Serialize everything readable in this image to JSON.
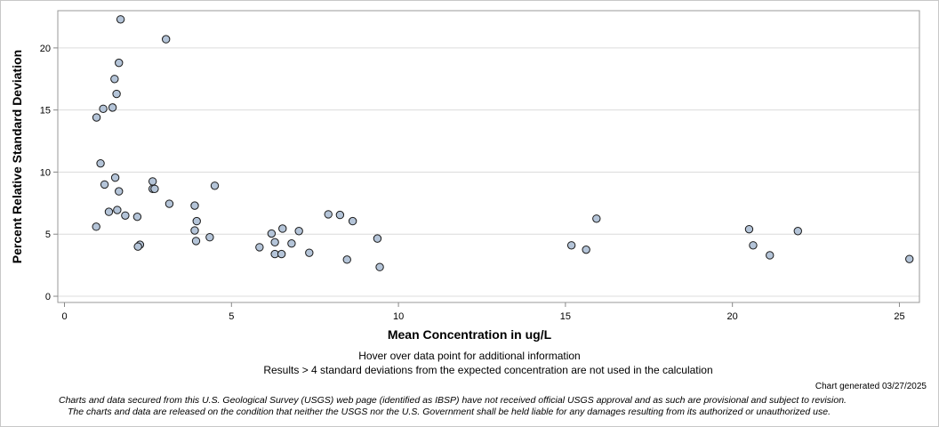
{
  "chart_data": {
    "type": "scatter",
    "title": "",
    "xlabel": "Mean Concentration in ug/L",
    "ylabel": "Percent Relative Standard Deviation",
    "xlim": [
      -0.2,
      25.6
    ],
    "ylim": [
      -0.5,
      23.0
    ],
    "xticks": [
      0,
      5,
      10,
      15,
      20,
      25
    ],
    "yticks": [
      0,
      5,
      10,
      15,
      20
    ],
    "grid": "horizontal",
    "points": [
      [
        1.68,
        22.3
      ],
      [
        3.04,
        20.7
      ],
      [
        1.63,
        18.8
      ],
      [
        1.5,
        17.5
      ],
      [
        1.56,
        16.3
      ],
      [
        0.96,
        14.4
      ],
      [
        1.16,
        15.1
      ],
      [
        1.44,
        15.2
      ],
      [
        1.08,
        10.7
      ],
      [
        1.52,
        9.55
      ],
      [
        1.2,
        9.0
      ],
      [
        1.63,
        8.45
      ],
      [
        2.64,
        9.25
      ],
      [
        2.64,
        8.65
      ],
      [
        2.7,
        8.65
      ],
      [
        4.5,
        8.9
      ],
      [
        3.14,
        7.45
      ],
      [
        3.9,
        7.3
      ],
      [
        1.33,
        6.8
      ],
      [
        1.58,
        6.95
      ],
      [
        1.82,
        6.5
      ],
      [
        2.18,
        6.4
      ],
      [
        3.96,
        6.05
      ],
      [
        0.95,
        5.6
      ],
      [
        3.9,
        5.3
      ],
      [
        4.35,
        4.75
      ],
      [
        3.94,
        4.45
      ],
      [
        2.26,
        4.15
      ],
      [
        2.2,
        4.0
      ],
      [
        5.84,
        3.95
      ],
      [
        6.2,
        5.05
      ],
      [
        6.53,
        5.45
      ],
      [
        7.02,
        5.25
      ],
      [
        6.3,
        4.35
      ],
      [
        6.8,
        4.25
      ],
      [
        6.3,
        3.4
      ],
      [
        6.5,
        3.4
      ],
      [
        7.33,
        3.5
      ],
      [
        7.9,
        6.6
      ],
      [
        8.25,
        6.55
      ],
      [
        8.63,
        6.05
      ],
      [
        9.37,
        4.65
      ],
      [
        8.46,
        2.95
      ],
      [
        9.44,
        2.35
      ],
      [
        15.18,
        4.1
      ],
      [
        15.62,
        3.75
      ],
      [
        15.93,
        6.25
      ],
      [
        20.5,
        5.4
      ],
      [
        20.62,
        4.1
      ],
      [
        21.12,
        3.3
      ],
      [
        21.96,
        5.25
      ],
      [
        25.3,
        3.0
      ]
    ]
  },
  "notes": {
    "hover": "Hover over data point for additional information",
    "results": "Results > 4 standard deviations from the expected concentration are not used in the calculation",
    "generated": "Chart generated 03/27/2025",
    "disclaimer_line1": "Charts and data secured from this U.S. Geological Survey (USGS) web page (identified as IBSP) have not received official USGS approval and as such are provisional and subject to revision.",
    "disclaimer_line2": "The charts and data are released on the condition that neither the USGS nor the U.S. Government shall be held liable for any damages resulting from its authorized or unauthorized use."
  },
  "colors": {
    "marker_fill": "#b4c4d8",
    "marker_stroke": "#1a1a1a",
    "grid": "#dcdcdc",
    "axis": "#888888"
  }
}
